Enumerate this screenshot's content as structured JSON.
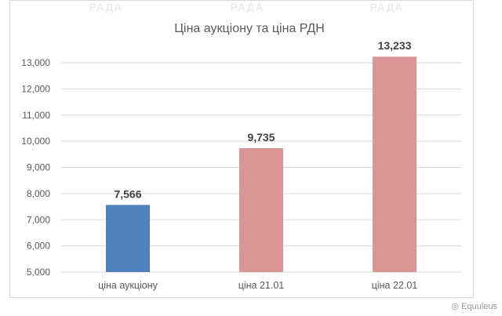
{
  "watermark": [
    "РАДА",
    "РАДА",
    "РАДА"
  ],
  "logo": {
    "icon": "wechat-icon",
    "text": "Equuleus"
  },
  "chart_data": {
    "type": "bar",
    "title": "Ціна аукціону та ціна РДН",
    "categories": [
      "ціна аукціону",
      "ціна 21.01",
      "ціна 22.01"
    ],
    "values": [
      7566,
      9735,
      13233
    ],
    "value_labels": [
      "7,566",
      "9,735",
      "13,233"
    ],
    "colors": [
      "#4f81bd",
      "#d99694",
      "#d99694"
    ],
    "ylim": [
      5000,
      13000
    ],
    "yticks": [
      5000,
      6000,
      7000,
      8000,
      9000,
      10000,
      11000,
      12000,
      13000
    ],
    "ytick_labels": [
      "5,000",
      "6,000",
      "7,000",
      "8,000",
      "9,000",
      "10,000",
      "11,000",
      "12,000",
      "13,000"
    ],
    "xlabel": "",
    "ylabel": "",
    "grid": true,
    "legend": "none"
  }
}
